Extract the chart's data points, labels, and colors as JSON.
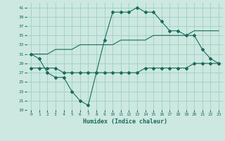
{
  "title": "",
  "xlabel": "Humidex (Indice chaleur)",
  "background_color": "#cce8e0",
  "grid_color": "#9ecfc4",
  "line_color": "#1a6b5a",
  "line1": {
    "x": [
      0,
      1,
      2,
      3,
      4,
      5,
      6,
      7,
      8,
      9,
      10,
      11,
      12,
      13,
      14,
      15,
      16,
      17,
      18,
      19,
      20,
      21,
      22,
      23
    ],
    "y": [
      31,
      30,
      27,
      26,
      26,
      23,
      21,
      20,
      27,
      34,
      40,
      40,
      40,
      41,
      40,
      40,
      38,
      36,
      36,
      35,
      35,
      32,
      30,
      29
    ]
  },
  "line2": {
    "x": [
      0,
      1,
      2,
      3,
      4,
      5,
      6,
      7,
      8,
      9,
      10,
      11,
      12,
      13,
      14,
      15,
      16,
      17,
      18,
      19,
      20,
      21,
      22,
      23
    ],
    "y": [
      28,
      28,
      28,
      28,
      27,
      27,
      27,
      27,
      27,
      27,
      27,
      27,
      27,
      27,
      28,
      28,
      28,
      28,
      28,
      28,
      29,
      29,
      29,
      29
    ]
  },
  "line3": {
    "x": [
      0,
      1,
      2,
      3,
      4,
      5,
      6,
      7,
      8,
      9,
      10,
      11,
      12,
      13,
      14,
      15,
      16,
      17,
      18,
      19,
      20,
      21,
      22,
      23
    ],
    "y": [
      31,
      31,
      31,
      32,
      32,
      32,
      33,
      33,
      33,
      33,
      33,
      34,
      34,
      34,
      34,
      35,
      35,
      35,
      35,
      35,
      36,
      36,
      36,
      36
    ]
  },
  "ylim": [
    19,
    42
  ],
  "xlim": [
    -0.5,
    23.5
  ],
  "yticks": [
    19,
    21,
    23,
    25,
    27,
    29,
    31,
    33,
    35,
    37,
    39,
    41
  ],
  "xticks": [
    0,
    1,
    2,
    3,
    4,
    5,
    6,
    7,
    8,
    9,
    10,
    11,
    12,
    13,
    14,
    15,
    16,
    17,
    18,
    19,
    20,
    21,
    22,
    23
  ]
}
